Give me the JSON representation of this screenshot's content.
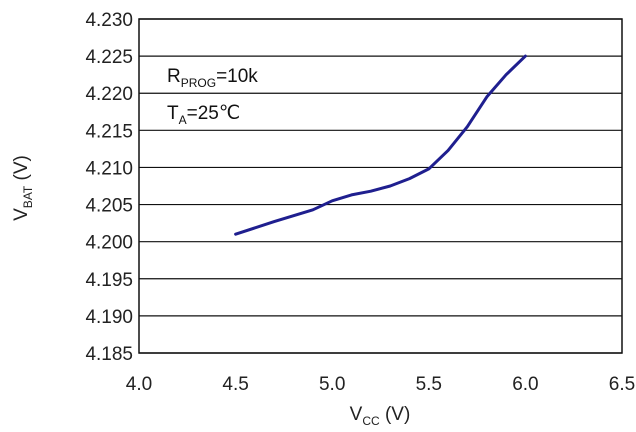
{
  "chart_data": {
    "type": "line",
    "xlabel": {
      "main": "V",
      "sub": "CC",
      "unit": " (V)"
    },
    "ylabel": {
      "main": "V",
      "sub": "BAT",
      "unit": " (V)"
    },
    "xlim": [
      4.0,
      6.5
    ],
    "ylim": [
      4.185,
      4.23
    ],
    "xticks": [
      "4.0",
      "4.5",
      "5.0",
      "5.5",
      "6.0",
      "6.5"
    ],
    "yticks": [
      "4.230",
      "4.225",
      "4.220",
      "4.215",
      "4.210",
      "4.205",
      "4.200",
      "4.195",
      "4.190",
      "4.185"
    ],
    "grid": "horizontal",
    "line_color": "#1f1f8f",
    "annotations": [
      {
        "main": "R",
        "sub": "PROG",
        "rest": "=10k"
      },
      {
        "main": "T",
        "sub": "A",
        "rest": "=25℃"
      }
    ],
    "series": [
      {
        "x": [
          4.5,
          4.7,
          4.9,
          5.0,
          5.1,
          5.2,
          5.3,
          5.4,
          5.5,
          5.6,
          5.7,
          5.8,
          5.9,
          6.0
        ],
        "values": [
          4.201,
          4.2027,
          4.2043,
          4.2055,
          4.2063,
          4.2068,
          4.2075,
          4.2085,
          4.2098,
          4.2123,
          4.2155,
          4.2195,
          4.2225,
          4.225
        ]
      }
    ]
  }
}
